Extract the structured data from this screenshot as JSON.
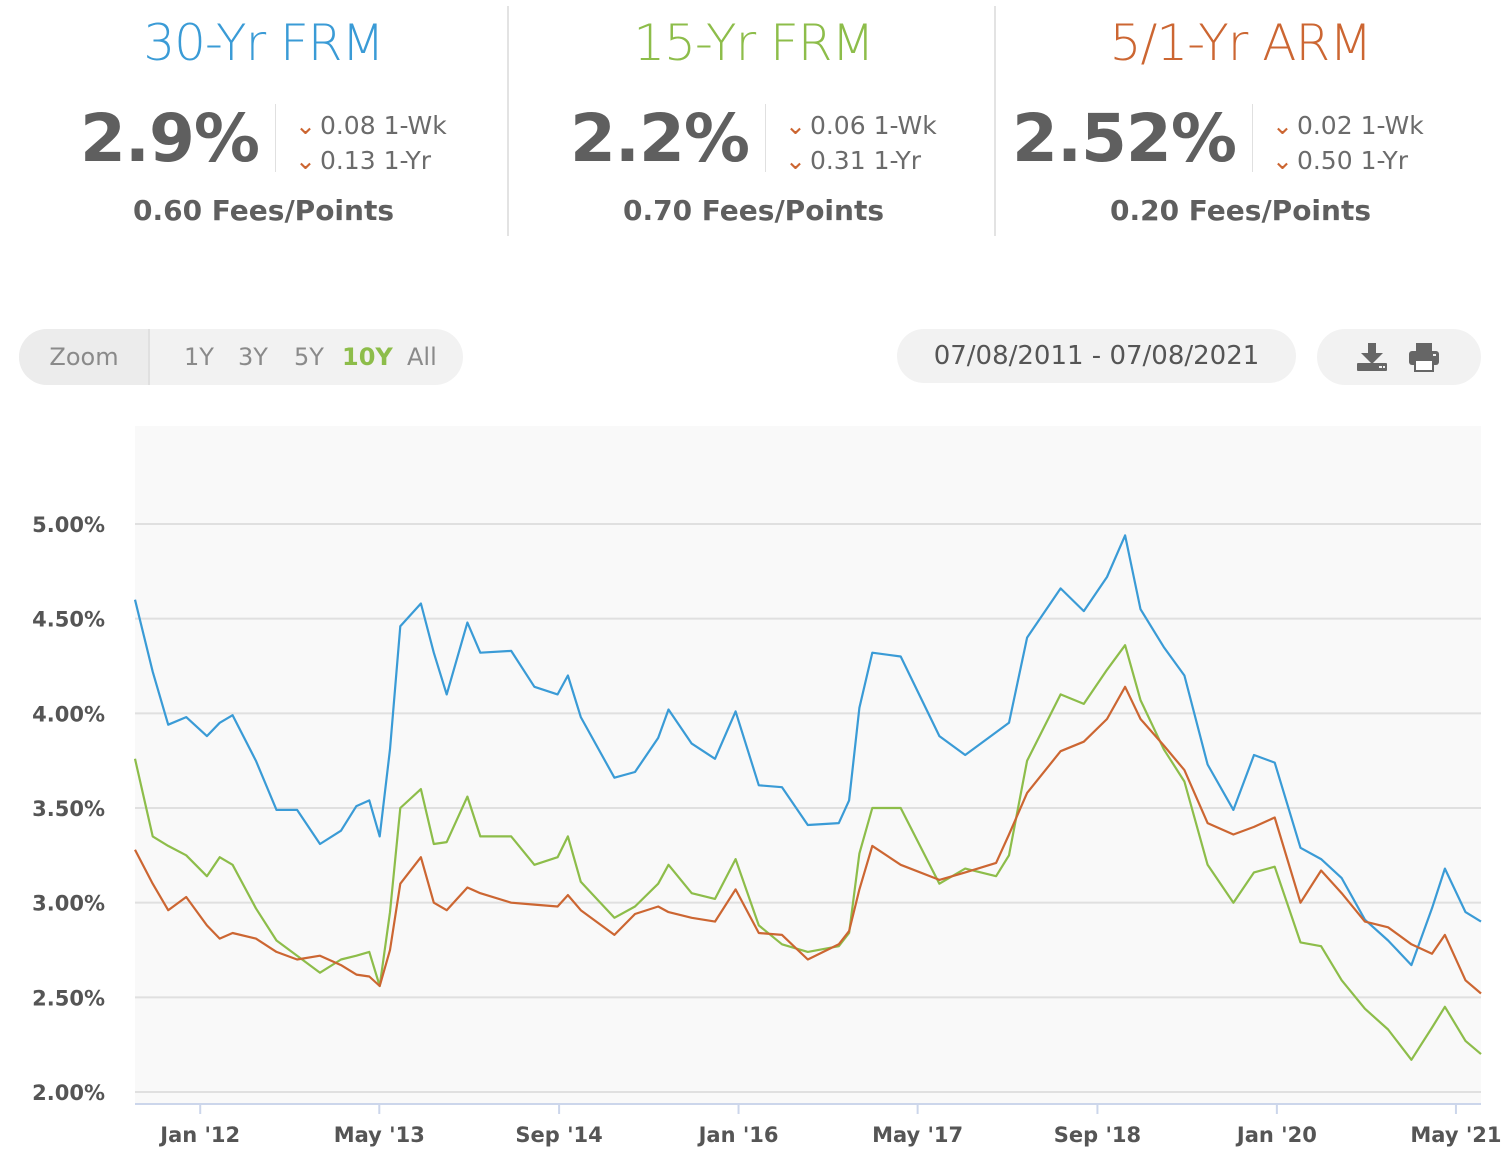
{
  "products": [
    {
      "title": "30-Yr FRM",
      "color": "#3a9bd6",
      "rate": "2.9%",
      "change_week": {
        "value": "0.08",
        "label": "1-Wk"
      },
      "change_year": {
        "value": "0.13",
        "label": "1-Yr"
      },
      "fees": "0.60 Fees/Points"
    },
    {
      "title": "15-Yr FRM",
      "color": "#8dbd4a",
      "rate": "2.2%",
      "change_week": {
        "value": "0.06",
        "label": "1-Wk"
      },
      "change_year": {
        "value": "0.31",
        "label": "1-Yr"
      },
      "fees": "0.70 Fees/Points"
    },
    {
      "title": "5/1-Yr ARM",
      "color": "#cc6632",
      "rate": "2.52%",
      "change_week": {
        "value": "0.02",
        "label": "1-Wk"
      },
      "change_year": {
        "value": "0.50",
        "label": "1-Yr"
      },
      "fees": "0.20 Fees/Points"
    }
  ],
  "change_arrow": "⌄",
  "zoom": {
    "label": "Zoom",
    "options": [
      "1Y",
      "3Y",
      "5Y",
      "10Y",
      "All"
    ],
    "active": "10Y"
  },
  "date_range": "07/08/2011 - 07/08/2021",
  "tools": {
    "download_icon": "download-icon",
    "print_icon": "print-icon"
  },
  "chart_data": {
    "type": "line",
    "x_range": [
      "2011-07-08",
      "2021-07-08"
    ],
    "ylim": [
      2.0,
      5.0
    ],
    "yticks": [
      "2.00%",
      "2.50%",
      "3.00%",
      "3.50%",
      "4.00%",
      "4.50%",
      "5.00%"
    ],
    "ytick_values": [
      2.0,
      2.5,
      3.0,
      3.5,
      4.0,
      4.5,
      5.0
    ],
    "xticks": [
      {
        "label": "Jan '12",
        "date": "2012-01-01"
      },
      {
        "label": "May '13",
        "date": "2013-05-01"
      },
      {
        "label": "Sep '14",
        "date": "2014-09-01"
      },
      {
        "label": "Jan '16",
        "date": "2016-01-01"
      },
      {
        "label": "May '17",
        "date": "2017-05-01"
      },
      {
        "label": "Sep '18",
        "date": "2018-09-01"
      },
      {
        "label": "Jan '20",
        "date": "2020-01-01"
      },
      {
        "label": "May '21",
        "date": "2021-05-01"
      }
    ],
    "grid": true,
    "series": [
      {
        "name": "30-Yr FRM",
        "color": "#3a9bd6",
        "points": [
          [
            "2011-07-08",
            4.6
          ],
          [
            "2011-08-25",
            4.22
          ],
          [
            "2011-10-06",
            3.94
          ],
          [
            "2011-11-24",
            3.98
          ],
          [
            "2012-01-19",
            3.88
          ],
          [
            "2012-02-23",
            3.95
          ],
          [
            "2012-03-29",
            3.99
          ],
          [
            "2012-05-31",
            3.75
          ],
          [
            "2012-07-26",
            3.49
          ],
          [
            "2012-09-20",
            3.49
          ],
          [
            "2012-11-21",
            3.31
          ],
          [
            "2013-01-17",
            3.38
          ],
          [
            "2013-02-28",
            3.51
          ],
          [
            "2013-04-04",
            3.54
          ],
          [
            "2013-05-02",
            3.35
          ],
          [
            "2013-05-30",
            3.81
          ],
          [
            "2013-06-27",
            4.46
          ],
          [
            "2013-08-22",
            4.58
          ],
          [
            "2013-09-26",
            4.32
          ],
          [
            "2013-10-31",
            4.1
          ],
          [
            "2013-12-26",
            4.48
          ],
          [
            "2014-01-30",
            4.32
          ],
          [
            "2014-04-24",
            4.33
          ],
          [
            "2014-06-26",
            4.14
          ],
          [
            "2014-08-28",
            4.1
          ],
          [
            "2014-09-25",
            4.2
          ],
          [
            "2014-10-30",
            3.98
          ],
          [
            "2015-01-29",
            3.66
          ],
          [
            "2015-03-26",
            3.69
          ],
          [
            "2015-05-28",
            3.87
          ],
          [
            "2015-06-25",
            4.02
          ],
          [
            "2015-08-27",
            3.84
          ],
          [
            "2015-10-29",
            3.76
          ],
          [
            "2015-12-24",
            4.01
          ],
          [
            "2016-02-25",
            3.62
          ],
          [
            "2016-04-28",
            3.61
          ],
          [
            "2016-07-07",
            3.41
          ],
          [
            "2016-09-29",
            3.42
          ],
          [
            "2016-10-27",
            3.54
          ],
          [
            "2016-11-24",
            4.03
          ],
          [
            "2016-12-29",
            4.32
          ],
          [
            "2017-03-16",
            4.3
          ],
          [
            "2017-06-29",
            3.88
          ],
          [
            "2017-09-07",
            3.78
          ],
          [
            "2017-11-30",
            3.9
          ],
          [
            "2018-01-04",
            3.95
          ],
          [
            "2018-02-22",
            4.4
          ],
          [
            "2018-05-24",
            4.66
          ],
          [
            "2018-07-26",
            4.54
          ],
          [
            "2018-09-27",
            4.72
          ],
          [
            "2018-11-15",
            4.94
          ],
          [
            "2018-12-27",
            4.55
          ],
          [
            "2019-02-28",
            4.35
          ],
          [
            "2019-04-25",
            4.2
          ],
          [
            "2019-06-27",
            3.73
          ],
          [
            "2019-09-05",
            3.49
          ],
          [
            "2019-10-31",
            3.78
          ],
          [
            "2019-12-26",
            3.74
          ],
          [
            "2020-03-05",
            3.29
          ],
          [
            "2020-04-30",
            3.23
          ],
          [
            "2020-06-25",
            3.13
          ],
          [
            "2020-08-27",
            2.91
          ],
          [
            "2020-10-29",
            2.8
          ],
          [
            "2020-12-31",
            2.67
          ],
          [
            "2021-02-25",
            2.97
          ],
          [
            "2021-04-01",
            3.18
          ],
          [
            "2021-05-27",
            2.95
          ],
          [
            "2021-07-08",
            2.9
          ]
        ]
      },
      {
        "name": "15-Yr FRM",
        "color": "#8dbd4a",
        "points": [
          [
            "2011-07-08",
            3.76
          ],
          [
            "2011-08-25",
            3.35
          ],
          [
            "2011-10-06",
            3.3
          ],
          [
            "2011-11-24",
            3.25
          ],
          [
            "2012-01-19",
            3.14
          ],
          [
            "2012-02-23",
            3.24
          ],
          [
            "2012-03-29",
            3.2
          ],
          [
            "2012-05-31",
            2.97
          ],
          [
            "2012-07-26",
            2.8
          ],
          [
            "2012-09-20",
            2.72
          ],
          [
            "2012-11-21",
            2.63
          ],
          [
            "2013-01-17",
            2.7
          ],
          [
            "2013-02-28",
            2.72
          ],
          [
            "2013-04-04",
            2.74
          ],
          [
            "2013-05-02",
            2.56
          ],
          [
            "2013-05-30",
            2.95
          ],
          [
            "2013-06-27",
            3.5
          ],
          [
            "2013-08-22",
            3.6
          ],
          [
            "2013-09-26",
            3.31
          ],
          [
            "2013-10-31",
            3.32
          ],
          [
            "2013-12-26",
            3.56
          ],
          [
            "2014-01-30",
            3.35
          ],
          [
            "2014-04-24",
            3.35
          ],
          [
            "2014-06-26",
            3.2
          ],
          [
            "2014-08-28",
            3.24
          ],
          [
            "2014-09-25",
            3.35
          ],
          [
            "2014-10-30",
            3.11
          ],
          [
            "2015-01-29",
            2.92
          ],
          [
            "2015-03-26",
            2.98
          ],
          [
            "2015-05-28",
            3.1
          ],
          [
            "2015-06-25",
            3.2
          ],
          [
            "2015-08-27",
            3.05
          ],
          [
            "2015-10-29",
            3.02
          ],
          [
            "2015-12-24",
            3.23
          ],
          [
            "2016-02-25",
            2.88
          ],
          [
            "2016-04-28",
            2.78
          ],
          [
            "2016-07-07",
            2.74
          ],
          [
            "2016-09-29",
            2.77
          ],
          [
            "2016-10-27",
            2.84
          ],
          [
            "2016-11-24",
            3.26
          ],
          [
            "2016-12-29",
            3.5
          ],
          [
            "2017-03-16",
            3.5
          ],
          [
            "2017-06-29",
            3.1
          ],
          [
            "2017-09-07",
            3.18
          ],
          [
            "2017-11-30",
            3.14
          ],
          [
            "2018-01-04",
            3.25
          ],
          [
            "2018-02-22",
            3.75
          ],
          [
            "2018-05-24",
            4.1
          ],
          [
            "2018-07-26",
            4.05
          ],
          [
            "2018-09-27",
            4.23
          ],
          [
            "2018-11-15",
            4.36
          ],
          [
            "2018-12-27",
            4.07
          ],
          [
            "2019-02-28",
            3.81
          ],
          [
            "2019-04-25",
            3.64
          ],
          [
            "2019-06-27",
            3.2
          ],
          [
            "2019-09-05",
            3.0
          ],
          [
            "2019-10-31",
            3.16
          ],
          [
            "2019-12-26",
            3.19
          ],
          [
            "2020-03-05",
            2.79
          ],
          [
            "2020-04-30",
            2.77
          ],
          [
            "2020-06-25",
            2.59
          ],
          [
            "2020-08-27",
            2.44
          ],
          [
            "2020-10-29",
            2.33
          ],
          [
            "2020-12-31",
            2.17
          ],
          [
            "2021-02-25",
            2.34
          ],
          [
            "2021-04-01",
            2.45
          ],
          [
            "2021-05-27",
            2.27
          ],
          [
            "2021-07-08",
            2.2
          ]
        ]
      },
      {
        "name": "5/1-Yr ARM",
        "color": "#cc6632",
        "points": [
          [
            "2011-07-08",
            3.28
          ],
          [
            "2011-08-25",
            3.1
          ],
          [
            "2011-10-06",
            2.96
          ],
          [
            "2011-11-24",
            3.03
          ],
          [
            "2012-01-19",
            2.88
          ],
          [
            "2012-02-23",
            2.81
          ],
          [
            "2012-03-29",
            2.84
          ],
          [
            "2012-05-31",
            2.81
          ],
          [
            "2012-07-26",
            2.74
          ],
          [
            "2012-09-20",
            2.7
          ],
          [
            "2012-11-21",
            2.72
          ],
          [
            "2013-01-17",
            2.67
          ],
          [
            "2013-02-28",
            2.62
          ],
          [
            "2013-04-04",
            2.61
          ],
          [
            "2013-05-02",
            2.56
          ],
          [
            "2013-05-30",
            2.75
          ],
          [
            "2013-06-27",
            3.1
          ],
          [
            "2013-08-22",
            3.24
          ],
          [
            "2013-09-26",
            3.0
          ],
          [
            "2013-10-31",
            2.96
          ],
          [
            "2013-12-26",
            3.08
          ],
          [
            "2014-01-30",
            3.05
          ],
          [
            "2014-04-24",
            3.0
          ],
          [
            "2014-06-26",
            2.99
          ],
          [
            "2014-08-28",
            2.98
          ],
          [
            "2014-09-25",
            3.04
          ],
          [
            "2014-10-30",
            2.96
          ],
          [
            "2015-01-29",
            2.83
          ],
          [
            "2015-03-26",
            2.94
          ],
          [
            "2015-05-28",
            2.98
          ],
          [
            "2015-06-25",
            2.95
          ],
          [
            "2015-08-27",
            2.92
          ],
          [
            "2015-10-29",
            2.9
          ],
          [
            "2015-12-24",
            3.07
          ],
          [
            "2016-02-25",
            2.84
          ],
          [
            "2016-04-28",
            2.83
          ],
          [
            "2016-07-07",
            2.7
          ],
          [
            "2016-09-29",
            2.78
          ],
          [
            "2016-10-27",
            2.85
          ],
          [
            "2016-11-24",
            3.07
          ],
          [
            "2016-12-29",
            3.3
          ],
          [
            "2017-03-16",
            3.2
          ],
          [
            "2017-06-29",
            3.12
          ],
          [
            "2017-09-07",
            3.16
          ],
          [
            "2017-11-30",
            3.21
          ],
          [
            "2018-01-04",
            3.36
          ],
          [
            "2018-02-22",
            3.58
          ],
          [
            "2018-05-24",
            3.8
          ],
          [
            "2018-07-26",
            3.85
          ],
          [
            "2018-09-27",
            3.97
          ],
          [
            "2018-11-15",
            4.14
          ],
          [
            "2018-12-27",
            3.97
          ],
          [
            "2019-02-28",
            3.83
          ],
          [
            "2019-04-25",
            3.7
          ],
          [
            "2019-06-27",
            3.42
          ],
          [
            "2019-09-05",
            3.36
          ],
          [
            "2019-10-31",
            3.4
          ],
          [
            "2019-12-26",
            3.45
          ],
          [
            "2020-03-05",
            3.0
          ],
          [
            "2020-04-30",
            3.17
          ],
          [
            "2020-06-25",
            3.05
          ],
          [
            "2020-08-27",
            2.9
          ],
          [
            "2020-10-29",
            2.87
          ],
          [
            "2020-12-31",
            2.78
          ],
          [
            "2021-02-25",
            2.73
          ],
          [
            "2021-04-01",
            2.83
          ],
          [
            "2021-05-27",
            2.59
          ],
          [
            "2021-07-08",
            2.52
          ]
        ]
      }
    ]
  }
}
